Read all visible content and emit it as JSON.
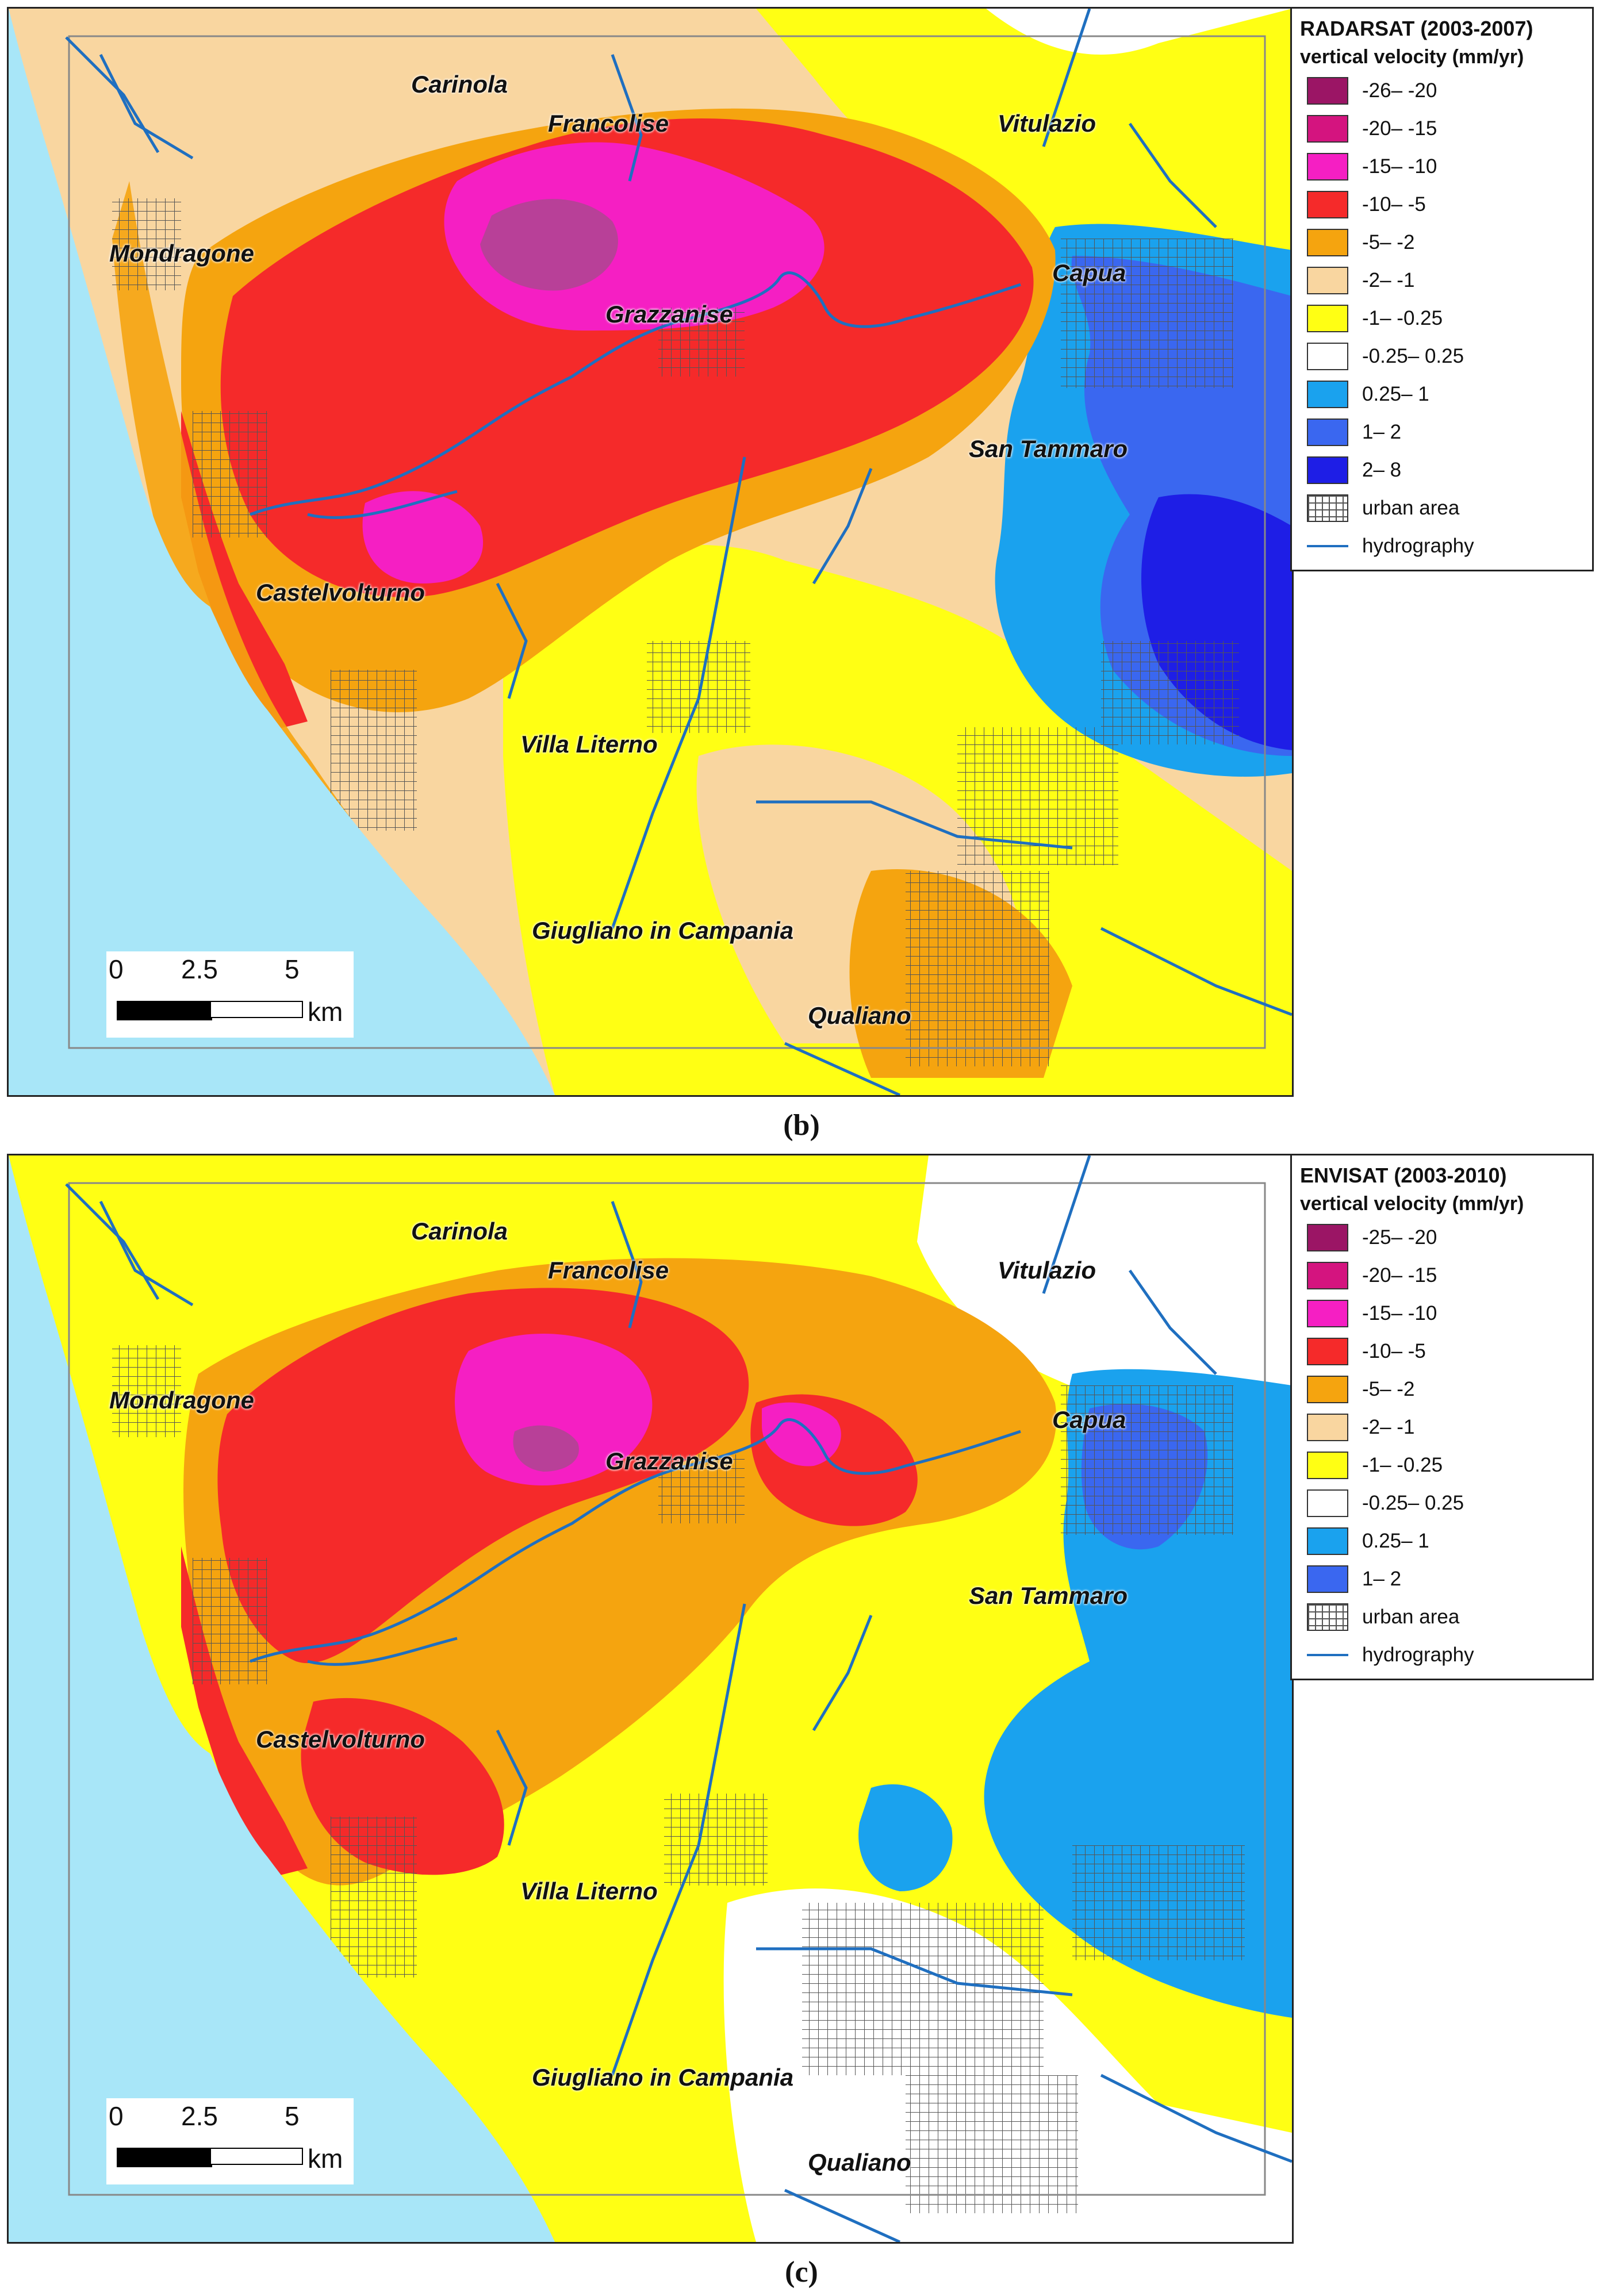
{
  "panels": [
    {
      "caption": "(b)",
      "legend": {
        "title": "RADARSAT (2003-2007)",
        "subtitle": "vertical velocity (mm/yr)",
        "classes": [
          {
            "label": "-26– -20",
            "color": "#9b1565"
          },
          {
            "label": "-20– -15",
            "color": "#d4147f"
          },
          {
            "label": "-15– -10",
            "color": "#f51fc3"
          },
          {
            "label": "-10– -5",
            "color": "#f52a2a"
          },
          {
            "label": "-5– -2",
            "color": "#f5a40f"
          },
          {
            "label": "-2– -1",
            "color": "#f9d6a0"
          },
          {
            "label": "-1– -0.25",
            "color": "#ffff14"
          },
          {
            "label": "-0.25– 0.25",
            "color": "#ffffff"
          },
          {
            "label": "0.25– 1",
            "color": "#1aa2ee"
          },
          {
            "label": "1– 2",
            "color": "#3a67f0"
          },
          {
            "label": "2– 8",
            "color": "#1e1ee6"
          }
        ],
        "urban_label": "urban area",
        "hydro_label": "hydrography"
      }
    },
    {
      "caption": "(c)",
      "legend": {
        "title": "ENVISAT (2003-2010)",
        "subtitle": "vertical velocity (mm/yr)",
        "classes": [
          {
            "label": "-25– -20",
            "color": "#9b1565"
          },
          {
            "label": "-20– -15",
            "color": "#d4147f"
          },
          {
            "label": "-15– -10",
            "color": "#f51fc3"
          },
          {
            "label": "-10– -5",
            "color": "#f52a2a"
          },
          {
            "label": "-5– -2",
            "color": "#f5a40f"
          },
          {
            "label": "-2– -1",
            "color": "#f9d6a0"
          },
          {
            "label": "-1– -0.25",
            "color": "#ffff14"
          },
          {
            "label": "-0.25– 0.25",
            "color": "#ffffff"
          },
          {
            "label": "0.25– 1",
            "color": "#1aa2ee"
          },
          {
            "label": "1– 2",
            "color": "#3a67f0"
          }
        ],
        "urban_label": "urban  area",
        "hydro_label": "hydrography"
      }
    }
  ],
  "towns": {
    "carinola": "Carinola",
    "francolise": "Francolise",
    "vitulazio": "Vitulazio",
    "mondragone": "Mondragone",
    "capua": "Capua",
    "grazzanise": "Grazzanise",
    "san_tammaro": "San Tammaro",
    "castelvolturno": "Castelvolturno",
    "villa_literno": "Villa Literno",
    "giugliano": "Giugliano in Campania",
    "qualiano": "Qualiano"
  },
  "scalebar": {
    "tick_0": "0",
    "tick_mid": "2.5",
    "tick_max": "5",
    "unit": "km"
  },
  "colors": {
    "sea": "#a8e6f8",
    "hydrography": "#1f6fc0"
  }
}
